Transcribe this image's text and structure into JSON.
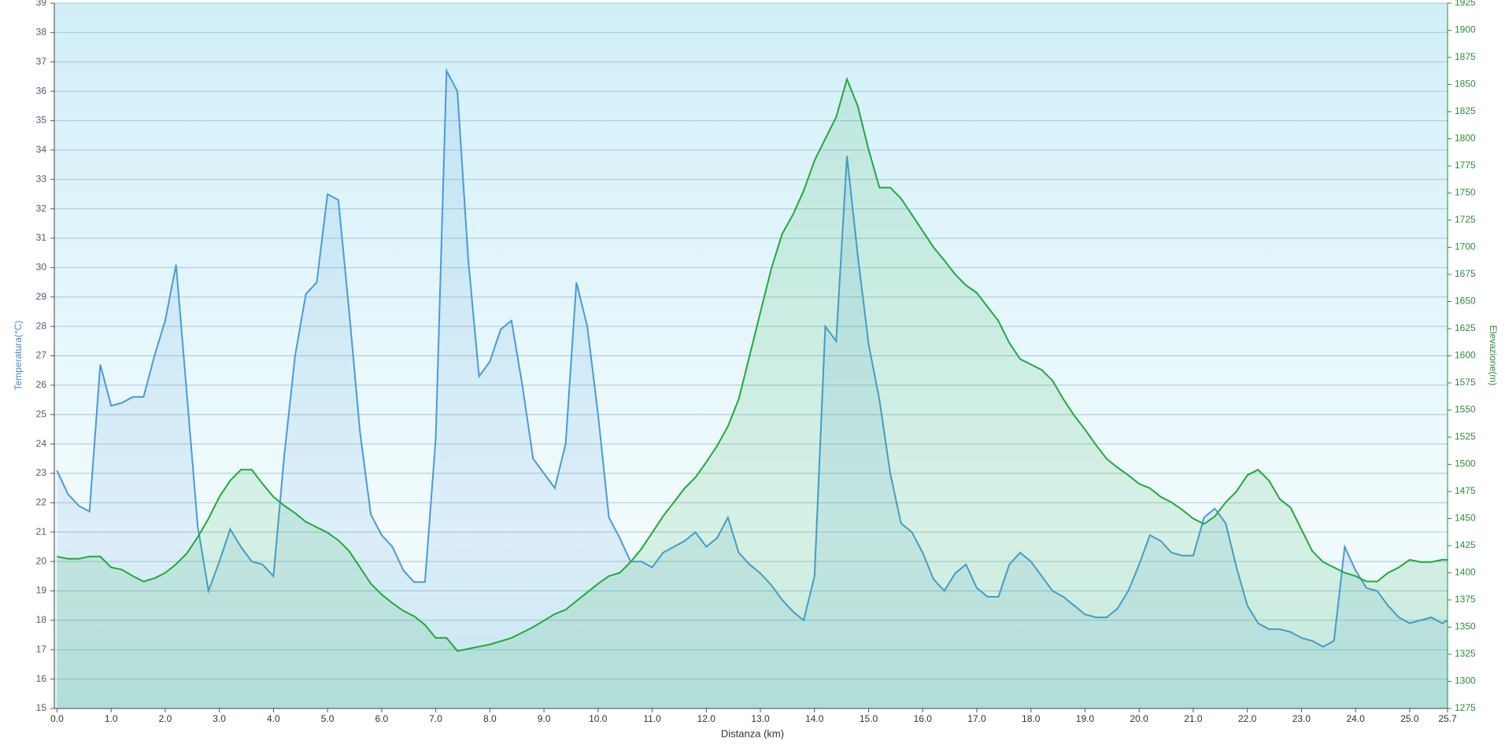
{
  "chart_data": {
    "type": "line",
    "xlabel": "Distanza  (km)",
    "ylabel": "Temperatura(°C)",
    "y2label": "Elevazione(m)",
    "x": [
      0,
      0.2,
      0.4,
      0.6,
      0.8,
      1,
      1.2,
      1.4,
      1.6,
      1.8,
      2,
      2.2,
      2.4,
      2.6,
      2.8,
      3,
      3.2,
      3.4,
      3.6,
      3.8,
      4,
      4.2,
      4.4,
      4.6,
      4.8,
      5,
      5.2,
      5.4,
      5.6,
      5.8,
      6,
      6.2,
      6.4,
      6.6,
      6.8,
      7,
      7.2,
      7.4,
      7.6,
      7.8,
      8,
      8.2,
      8.4,
      8.6,
      8.8,
      9,
      9.2,
      9.4,
      9.6,
      9.8,
      10,
      10.2,
      10.4,
      10.6,
      10.8,
      11,
      11.2,
      11.4,
      11.6,
      11.8,
      12,
      12.2,
      12.4,
      12.6,
      12.8,
      13,
      13.2,
      13.4,
      13.6,
      13.8,
      14,
      14.2,
      14.4,
      14.6,
      14.8,
      15,
      15.2,
      15.4,
      15.6,
      15.8,
      16,
      16.2,
      16.4,
      16.6,
      16.8,
      17,
      17.2,
      17.4,
      17.6,
      17.8,
      18,
      18.2,
      18.4,
      18.6,
      18.8,
      19,
      19.2,
      19.4,
      19.6,
      19.8,
      20,
      20.2,
      20.4,
      20.6,
      20.8,
      21,
      21.2,
      21.4,
      21.6,
      21.8,
      22,
      22.2,
      22.4,
      22.6,
      22.8,
      23,
      23.2,
      23.4,
      23.6,
      23.8,
      24,
      24.2,
      24.4,
      24.6,
      24.8,
      25,
      25.2,
      25.4,
      25.6,
      25.7
    ],
    "series": [
      {
        "color": "#4a9ad8",
        "values": [
          23.1,
          22.3,
          21.9,
          21.7,
          26.7,
          25.3,
          25.4,
          25.6,
          25.6,
          27.0,
          28.2,
          30.1,
          25.7,
          21.2,
          19.0,
          20.0,
          21.1,
          20.5,
          20.0,
          19.9,
          19.5,
          23.6,
          27.0,
          29.1,
          29.5,
          32.5,
          32.3,
          28.5,
          24.4,
          21.6,
          20.9,
          20.5,
          19.7,
          19.3,
          19.3,
          24.2,
          36.7,
          36.0,
          30.3,
          26.3,
          26.8,
          27.9,
          28.2,
          26.0,
          23.5,
          23.0,
          22.5,
          24.0,
          29.5,
          28.0,
          25.0,
          21.5,
          20.8,
          20.0,
          20.0,
          19.8,
          20.3,
          20.5,
          20.7,
          21.0,
          20.5,
          20.8,
          21.5,
          20.3,
          19.9,
          19.6,
          19.2,
          18.7,
          18.3,
          18.0,
          19.5,
          28.0,
          27.5,
          33.8,
          30.4,
          27.4,
          25.5,
          23.0,
          21.3,
          21.0,
          20.3,
          19.4,
          19.0,
          19.6,
          19.9,
          19.1,
          18.8,
          18.8,
          19.9,
          20.3,
          20.0,
          19.5,
          19.0,
          18.8,
          18.5,
          18.2,
          18.1,
          18.1,
          18.4,
          19.0,
          19.9,
          20.9,
          20.7,
          20.3,
          20.2,
          20.2,
          21.5,
          21.8,
          21.3,
          19.8,
          18.5,
          17.9,
          17.7,
          17.7,
          17.6,
          17.4,
          17.3,
          17.1,
          17.3,
          20.5,
          19.7,
          19.1,
          19.0,
          18.5,
          18.1,
          17.9,
          18.0,
          18.1,
          17.9,
          18.0
        ]
      },
      {
        "color": "#22a83c",
        "axis": "y2",
        "values": [
          1415,
          1413,
          1413,
          1415,
          1415,
          1405,
          1403,
          1397,
          1392,
          1395,
          1400,
          1408,
          1418,
          1433,
          1450,
          1470,
          1485,
          1495,
          1495,
          1482,
          1470,
          1462,
          1455,
          1447,
          1442,
          1437,
          1430,
          1420,
          1405,
          1390,
          1380,
          1372,
          1365,
          1360,
          1352,
          1340,
          1340,
          1328,
          1330,
          1332,
          1334,
          1337,
          1340,
          1345,
          1350,
          1356,
          1362,
          1366,
          1374,
          1382,
          1390,
          1397,
          1400,
          1410,
          1422,
          1437,
          1452,
          1465,
          1478,
          1488,
          1502,
          1517,
          1535,
          1560,
          1600,
          1640,
          1680,
          1712,
          1730,
          1752,
          1780,
          1800,
          1820,
          1855,
          1830,
          1790,
          1755,
          1755,
          1745,
          1730,
          1715,
          1700,
          1688,
          1675,
          1665,
          1658,
          1645,
          1632,
          1612,
          1597,
          1592,
          1587,
          1577,
          1560,
          1545,
          1532,
          1518,
          1505,
          1497,
          1490,
          1482,
          1478,
          1470,
          1465,
          1458,
          1450,
          1445,
          1452,
          1465,
          1475,
          1490,
          1495,
          1485,
          1468,
          1460,
          1440,
          1420,
          1410,
          1405,
          1400,
          1397,
          1392,
          1392,
          1400,
          1405,
          1412,
          1410,
          1410,
          1412,
          1412
        ]
      }
    ],
    "xlim": [
      -0.05,
      25.7
    ],
    "xticks": [
      {
        "value": 0,
        "label": "0.0"
      },
      {
        "value": 1,
        "label": "1.0"
      },
      {
        "value": 2,
        "label": "2.0"
      },
      {
        "value": 3,
        "label": "3.0"
      },
      {
        "value": 4,
        "label": "4.0"
      },
      {
        "value": 5,
        "label": "5.0"
      },
      {
        "value": 6,
        "label": "6.0"
      },
      {
        "value": 7,
        "label": "7.0"
      },
      {
        "value": 8,
        "label": "8.0"
      },
      {
        "value": 9,
        "label": "9.0"
      },
      {
        "value": 10,
        "label": "10.0"
      },
      {
        "value": 11,
        "label": "11.0"
      },
      {
        "value": 12,
        "label": "12.0"
      },
      {
        "value": 13,
        "label": "13.0"
      },
      {
        "value": 14,
        "label": "14.0"
      },
      {
        "value": 15,
        "label": "15.0"
      },
      {
        "value": 16,
        "label": "16.0"
      },
      {
        "value": 17,
        "label": "17.0"
      },
      {
        "value": 18,
        "label": "18.0"
      },
      {
        "value": 19,
        "label": "19.0"
      },
      {
        "value": 20,
        "label": "20.0"
      },
      {
        "value": 21,
        "label": "21.0"
      },
      {
        "value": 22,
        "label": "22.0"
      },
      {
        "value": 23,
        "label": "23.0"
      },
      {
        "value": 24,
        "label": "24.0"
      },
      {
        "value": 25,
        "label": "25.0"
      },
      25.7
    ],
    "ylim": [
      15,
      39
    ],
    "yticks": [
      15,
      16,
      17,
      18,
      19,
      20,
      21,
      22,
      23,
      24,
      25,
      26,
      27,
      28,
      29,
      30,
      31,
      32,
      33,
      34,
      35,
      36,
      37,
      38,
      39
    ],
    "y2lim": [
      1275,
      1925
    ],
    "y2ticks": [
      1275,
      1300,
      1325,
      1350,
      1375,
      1400,
      1425,
      1450,
      1475,
      1500,
      1525,
      1550,
      1575,
      1600,
      1625,
      1650,
      1675,
      1700,
      1725,
      1750,
      1775,
      1800,
      1825,
      1850,
      1875,
      1900,
      1925
    ],
    "grid": true
  }
}
